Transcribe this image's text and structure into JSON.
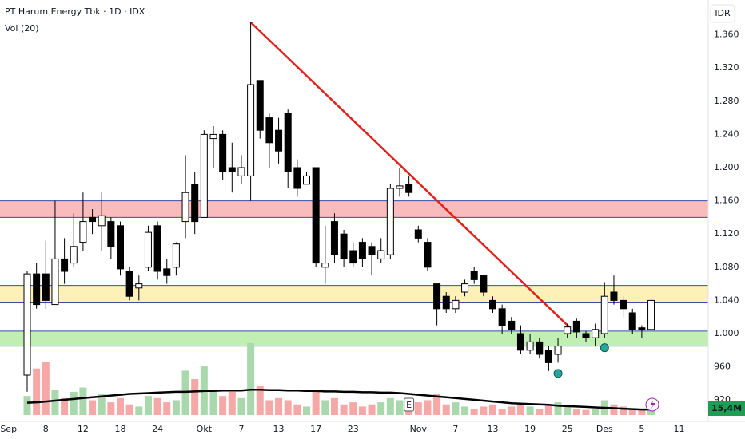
{
  "chart_data": {
    "type": "candlestick",
    "title": "PT Harum Energy Tbk · 1D · IDX",
    "subtitle": "Vol (20)",
    "currency": "IDR",
    "last_volume_label": "15,4M",
    "event_label": "E",
    "ylim": [
      920,
      1380
    ],
    "yticks": [
      {
        "value": 920,
        "label": "920"
      },
      {
        "value": 960,
        "label": "960"
      },
      {
        "value": 1000,
        "label": "1.000"
      },
      {
        "value": 1040,
        "label": "1.040"
      },
      {
        "value": 1080,
        "label": "1.080"
      },
      {
        "value": 1120,
        "label": "1.120"
      },
      {
        "value": 1160,
        "label": "1.160"
      },
      {
        "value": 1200,
        "label": "1.200"
      },
      {
        "value": 1240,
        "label": "1.240"
      },
      {
        "value": 1280,
        "label": "1.280"
      },
      {
        "value": 1320,
        "label": "1.320"
      },
      {
        "value": 1360,
        "label": "1.360"
      }
    ],
    "xticks": [
      {
        "value": -2,
        "label": "Sep"
      },
      {
        "value": 2,
        "label": "8"
      },
      {
        "value": 6,
        "label": "12"
      },
      {
        "value": 10,
        "label": "18"
      },
      {
        "value": 14,
        "label": "24"
      },
      {
        "value": 19,
        "label": "Okt"
      },
      {
        "value": 23,
        "label": "7"
      },
      {
        "value": 27,
        "label": "13"
      },
      {
        "value": 31,
        "label": "17"
      },
      {
        "value": 35,
        "label": "23"
      },
      {
        "value": 42,
        "label": "Nov"
      },
      {
        "value": 46,
        "label": "7"
      },
      {
        "value": 50,
        "label": "13"
      },
      {
        "value": 54,
        "label": "19"
      },
      {
        "value": 58,
        "label": "25"
      },
      {
        "value": 62,
        "label": "Des"
      },
      {
        "value": 66,
        "label": "5"
      },
      {
        "value": 70,
        "label": "11"
      }
    ],
    "open": [
      950,
      1072,
      1072,
      1035,
      1090,
      1085,
      1110,
      1140,
      1130,
      1135,
      1130,
      1075,
      1055,
      1080,
      1130,
      1078,
      1080,
      1135,
      1180,
      1140,
      1235,
      1240,
      1200,
      1190,
      1190,
      1305,
      1260,
      1245,
      1265,
      1200,
      1180,
      1200,
      1080,
      1135,
      1120,
      1100,
      1110,
      1105,
      1090,
      1095,
      1175,
      1180,
      1125,
      1110,
      1060,
      1045,
      1030,
      1050,
      1075,
      1070,
      1040,
      1030,
      1015,
      1000,
      980,
      990,
      980,
      975,
      1000,
      1015,
      1000,
      995,
      1000,
      1050,
      1040,
      1025,
      1007,
      1005
    ],
    "high": [
      1075,
      1085,
      1112,
      1160,
      1115,
      1145,
      1170,
      1150,
      1170,
      1140,
      1135,
      1080,
      1070,
      1130,
      1135,
      1090,
      1110,
      1215,
      1195,
      1245,
      1250,
      1245,
      1230,
      1215,
      1375,
      1305,
      1265,
      1260,
      1270,
      1210,
      1195,
      1200,
      1130,
      1145,
      1125,
      1110,
      1115,
      1110,
      1115,
      1180,
      1200,
      1190,
      1130,
      1115,
      1060,
      1050,
      1045,
      1065,
      1080,
      1070,
      1045,
      1035,
      1020,
      1010,
      1000,
      995,
      985,
      995,
      1012,
      1018,
      1003,
      1012,
      1062,
      1070,
      1045,
      1030,
      1010,
      1042
    ],
    "low": [
      930,
      1030,
      1030,
      1035,
      1060,
      1080,
      1100,
      1120,
      1100,
      1090,
      1070,
      1040,
      1040,
      1075,
      1065,
      1060,
      1070,
      1115,
      1120,
      1140,
      1200,
      1185,
      1170,
      1180,
      1160,
      1235,
      1200,
      1205,
      1175,
      1165,
      1180,
      1080,
      1060,
      1085,
      1080,
      1080,
      1080,
      1070,
      1085,
      1090,
      1165,
      1165,
      1110,
      1075,
      1010,
      1025,
      1025,
      1045,
      1060,
      1045,
      1025,
      1000,
      1000,
      975,
      975,
      970,
      955,
      965,
      995,
      995,
      990,
      985,
      995,
      1035,
      1020,
      1000,
      995,
      1005
    ],
    "close": [
      1072,
      1035,
      1040,
      1090,
      1075,
      1105,
      1135,
      1135,
      1142,
      1105,
      1078,
      1045,
      1060,
      1122,
      1075,
      1070,
      1108,
      1170,
      1135,
      1240,
      1240,
      1195,
      1195,
      1200,
      1300,
      1245,
      1230,
      1220,
      1195,
      1175,
      1190,
      1085,
      1085,
      1095,
      1090,
      1085,
      1090,
      1095,
      1100,
      1175,
      1178,
      1170,
      1115,
      1080,
      1030,
      1030,
      1040,
      1060,
      1065,
      1050,
      1030,
      1010,
      1005,
      980,
      990,
      975,
      965,
      985,
      1008,
      1002,
      995,
      1005,
      1045,
      1040,
      1030,
      1005,
      1005,
      1040
    ],
    "volume": [
      45,
      110,
      125,
      60,
      40,
      55,
      65,
      35,
      50,
      30,
      40,
      25,
      20,
      45,
      40,
      30,
      35,
      105,
      85,
      115,
      60,
      45,
      55,
      40,
      170,
      70,
      35,
      40,
      35,
      25,
      20,
      60,
      35,
      40,
      25,
      30,
      20,
      25,
      30,
      40,
      35,
      25,
      30,
      35,
      50,
      25,
      30,
      20,
      15,
      20,
      25,
      15,
      20,
      25,
      20,
      15,
      25,
      30,
      20,
      15,
      12,
      15,
      35,
      25,
      20,
      15,
      12,
      15.4
    ],
    "volume_ma": [
      29,
      30,
      32,
      34,
      36,
      38,
      40,
      42,
      44,
      46,
      48,
      50,
      51,
      52,
      53,
      54,
      55,
      55,
      56,
      57,
      57,
      58,
      58,
      58,
      60,
      60,
      59,
      59,
      58,
      58,
      57,
      57,
      56,
      56,
      55,
      55,
      54,
      54,
      53,
      53,
      52,
      50,
      48,
      46,
      44,
      42,
      40,
      38,
      36,
      34,
      32,
      30,
      28,
      27,
      26,
      25,
      24,
      22,
      21,
      20,
      19,
      18,
      17,
      16,
      15,
      14,
      13,
      13
    ],
    "event_index": 41,
    "zones": [
      {
        "from": 1140,
        "to": 1160,
        "color": "#f8b4b4"
      },
      {
        "from": 1038,
        "to": 1058,
        "color": "#fdf0b0"
      },
      {
        "from": 985,
        "to": 1003,
        "color": "#b9ecab"
      }
    ],
    "trendline": {
      "from": [
        24,
        1375
      ],
      "to": [
        58.3,
        1007
      ],
      "color": "#e3201b"
    },
    "signals": [
      {
        "x": 57,
        "value": 952
      },
      {
        "x": 62,
        "value": 983
      }
    ],
    "colors": {
      "up": "#ffffff",
      "down": "#000000",
      "volume_up": "#a9d8ad",
      "volume_down": "#f5a8a6",
      "signal": "#26a69a",
      "zone_border": "#3949ab"
    }
  }
}
